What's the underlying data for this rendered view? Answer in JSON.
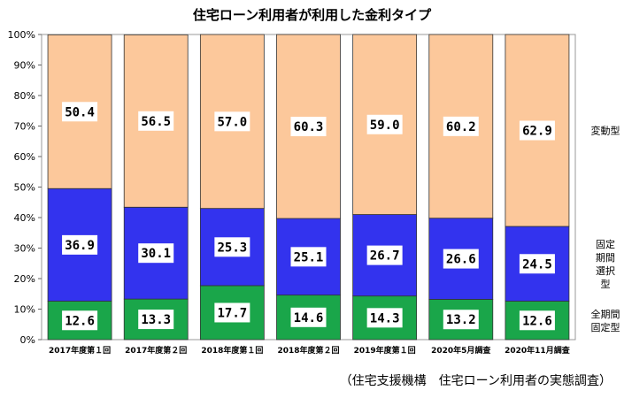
{
  "chart_data": {
    "type": "bar",
    "stacked": true,
    "title": "住宅ローン利用者が利用した金利タイプ",
    "categories": [
      "2017年度第１回",
      "2017年度第２回",
      "2018年度第１回",
      "2018年度第２回",
      "2019年度第１回",
      "2020年5月調査",
      "2020年11月調査"
    ],
    "series": [
      {
        "name": "全期間固定型",
        "color": "#1aa64a",
        "values": [
          12.6,
          13.3,
          17.7,
          14.6,
          14.3,
          13.2,
          12.6
        ]
      },
      {
        "name": "固定期間選択型",
        "color": "#3333ee",
        "values": [
          36.9,
          30.1,
          25.3,
          25.1,
          26.7,
          26.6,
          24.5
        ]
      },
      {
        "name": "変動型",
        "color": "#fcc89b",
        "values": [
          50.4,
          56.5,
          57.0,
          60.3,
          59.0,
          60.2,
          62.9
        ]
      }
    ],
    "value_labels": [
      [
        "12.6",
        "13.3",
        "17.7",
        "14.6",
        "14.3",
        "13.2",
        "12.6"
      ],
      [
        "36.9",
        "30.1",
        "25.3",
        "25.1",
        "26.7",
        "26.6",
        "24.5"
      ],
      [
        "50.4",
        "56.5",
        "57.0",
        "60.3",
        "59.0",
        "60.2",
        "62.9"
      ]
    ],
    "yticks": [
      "0%",
      "10%",
      "20%",
      "30%",
      "40%",
      "50%",
      "60%",
      "70%",
      "80%",
      "90%",
      "100%"
    ],
    "ylim": [
      0,
      100
    ],
    "legend_placement": "right",
    "legend_lines": [
      [
        "全期間",
        "固定型"
      ],
      [
        "固定",
        "期間",
        "選択",
        "型"
      ],
      [
        "変動型"
      ]
    ]
  },
  "source": "（住宅支援機構　住宅ローン利用者の実態調査）"
}
